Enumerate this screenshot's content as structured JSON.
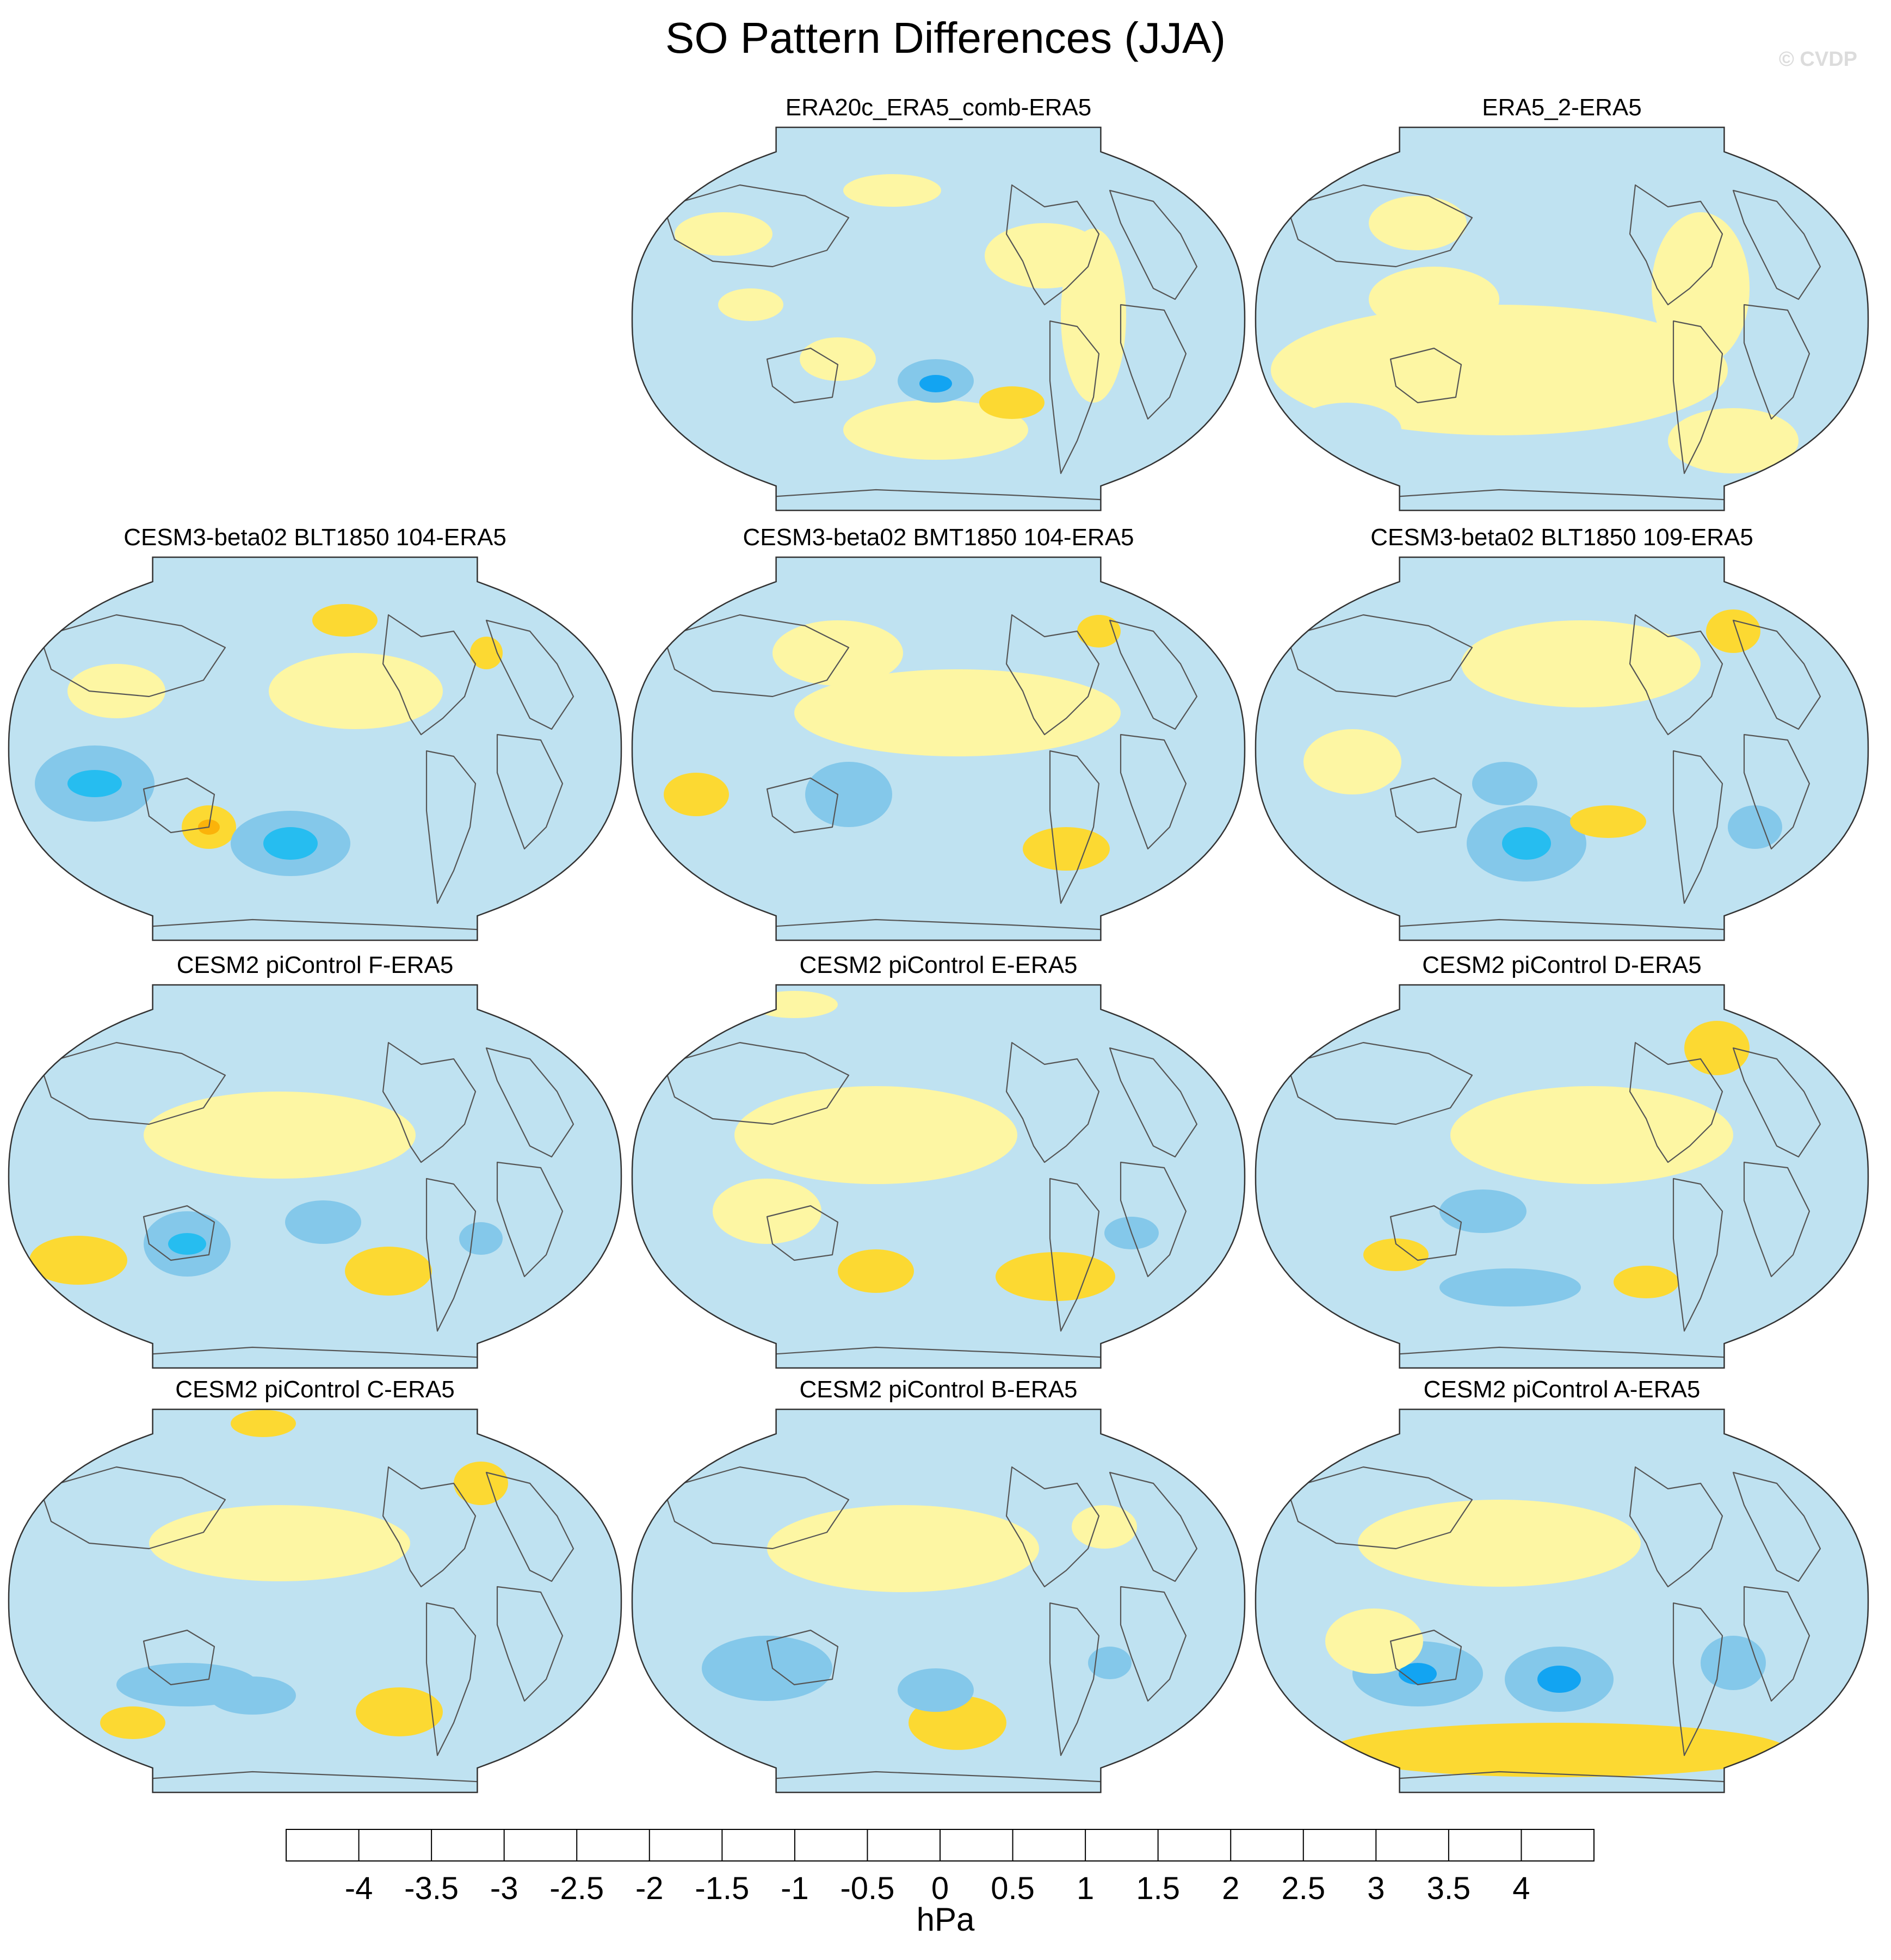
{
  "title": "SO Pattern Differences (JJA)",
  "watermark": "© CVDP",
  "chart_data": {
    "type": "heatmap",
    "projection": "Robinson (global, Pacific-centered)",
    "variable": "sea level pressure pattern difference",
    "season": "JJA",
    "units": "hPa",
    "colorbar": {
      "title": "hPa",
      "tick_labels": [
        "-4",
        "-3.5",
        "-3",
        "-2.5",
        "-2",
        "-1.5",
        "-1",
        "-0.5",
        "0",
        "0.5",
        "1",
        "1.5",
        "2",
        "2.5",
        "3",
        "3.5",
        "4"
      ],
      "levels": [
        -4,
        -3.5,
        -3,
        -2.5,
        -2,
        -1.5,
        -1,
        -0.5,
        0,
        0.5,
        1,
        1.5,
        2,
        2.5,
        3,
        3.5,
        4
      ],
      "colors": [
        "#8a1ee6",
        "#2d0af0",
        "#2238e8",
        "#3b64e0",
        "#2b7bf0",
        "#12a4f2",
        "#26bdf0",
        "#84c8ea",
        "#bfe2f1",
        "#fdf6a3",
        "#fcd932",
        "#fbb30a",
        "#fb8805",
        "#fa5a05",
        "#f90d07",
        "#dd0404",
        "#cf2a2a",
        "#f8b4b4"
      ]
    },
    "panels": [
      {
        "title": "ERA20c_ERA5_comb-ERA5",
        "position": "row 1 col 2",
        "min_value": -2.0,
        "max_value": 1.5
      },
      {
        "title": "ERA5_2-ERA5",
        "position": "row 1 col 3",
        "min_value": -1.0,
        "max_value": 0.5
      },
      {
        "title": "CESM3-beta02 BLT1850 104-ERA5",
        "position": "row 2 col 1",
        "min_value": -2.0,
        "max_value": 1.5
      },
      {
        "title": "CESM3-beta02 BMT1850 104-ERA5",
        "position": "row 2 col 2",
        "min_value": -1.5,
        "max_value": 1.0
      },
      {
        "title": "CESM3-beta02 BLT1850 109-ERA5",
        "position": "row 2 col 3",
        "min_value": -2.0,
        "max_value": 1.0
      },
      {
        "title": "CESM2 piControl F-ERA5",
        "position": "row 3 col 1",
        "min_value": -2.0,
        "max_value": 1.0
      },
      {
        "title": "CESM2 piControl E-ERA5",
        "position": "row 3 col 2",
        "min_value": -1.0,
        "max_value": 1.0
      },
      {
        "title": "CESM2 piControl D-ERA5",
        "position": "row 3 col 3",
        "min_value": -1.0,
        "max_value": 1.0
      },
      {
        "title": "CESM2 piControl C-ERA5",
        "position": "row 4 col 1",
        "min_value": -1.0,
        "max_value": 1.0
      },
      {
        "title": "CESM2 piControl B-ERA5",
        "position": "row 4 col 2",
        "min_value": -1.0,
        "max_value": 1.0
      },
      {
        "title": "CESM2 piControl A-ERA5",
        "position": "row 4 col 3",
        "min_value": -2.0,
        "max_value": 1.0
      }
    ]
  }
}
